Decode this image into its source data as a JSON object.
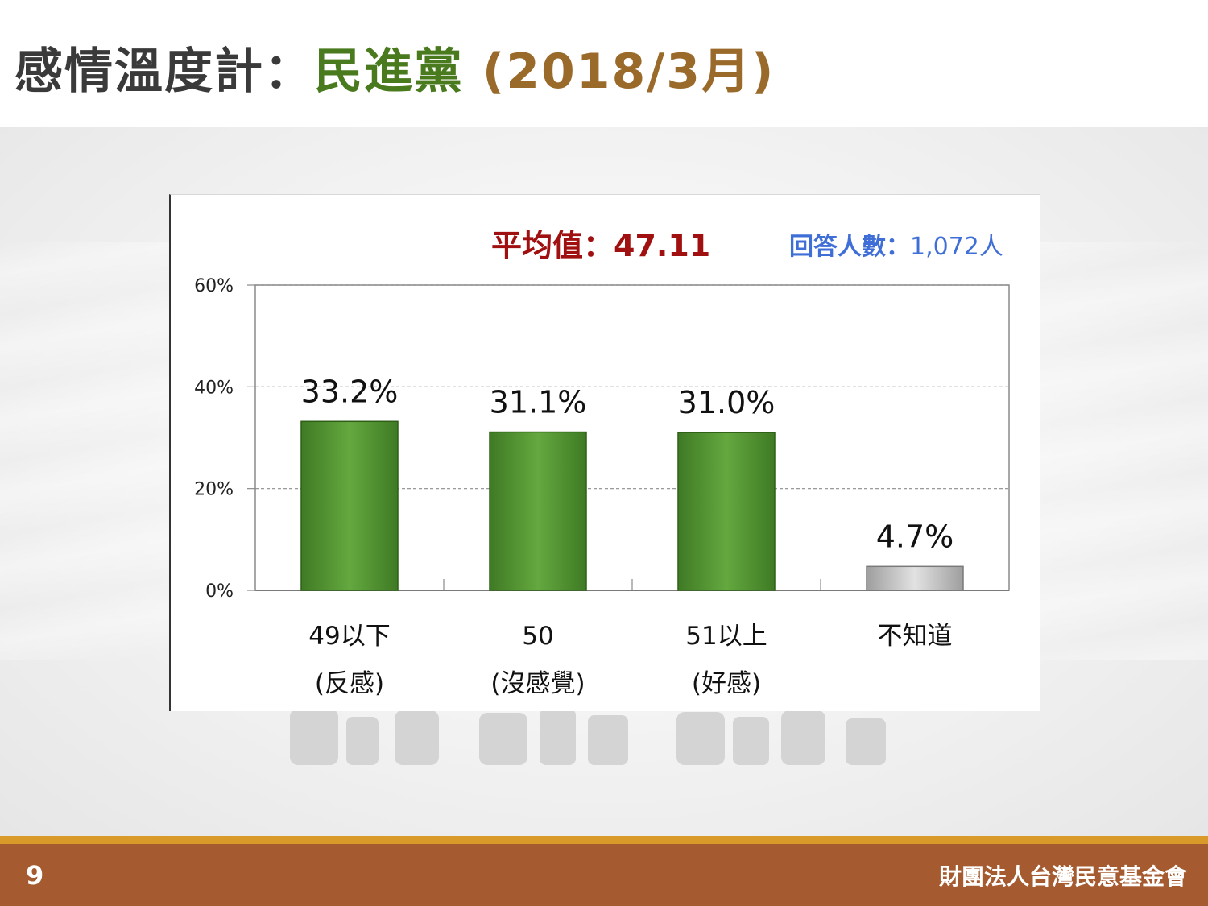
{
  "slide": {
    "title_prefix": "感情溫度計：",
    "title_party": "民進黨",
    "title_date": " (2018/3月)",
    "mean_label": "平均值：47.11",
    "n_label_prefix": "回答人數：",
    "n_label_value": "1,072人",
    "page_number": "9",
    "organization": "財團法人台灣民意基金會"
  },
  "colors": {
    "bar": "#4f8f2f",
    "bar_highlight": "#6aac45",
    "bar_unknown": "#bdbdbd",
    "title_party": "#4a7a1e",
    "title_date": "#9a6a2a",
    "mean": "#a01010",
    "n_label": "#3f6fd6",
    "footer": "#a55a2f"
  },
  "chart_data": {
    "type": "bar",
    "categories": [
      [
        "49以下",
        "(反感)"
      ],
      [
        "50",
        "(沒感覺)"
      ],
      [
        "51以上",
        "(好感)"
      ],
      [
        "不知道",
        ""
      ]
    ],
    "values": [
      33.2,
      31.1,
      31.0,
      4.7
    ],
    "value_labels": [
      "33.2%",
      "31.1%",
      "31.0%",
      "4.7%"
    ],
    "y_ticks": [
      "0%",
      "20%",
      "40%",
      "60%"
    ],
    "ylim": [
      0,
      60
    ],
    "grid": true
  }
}
